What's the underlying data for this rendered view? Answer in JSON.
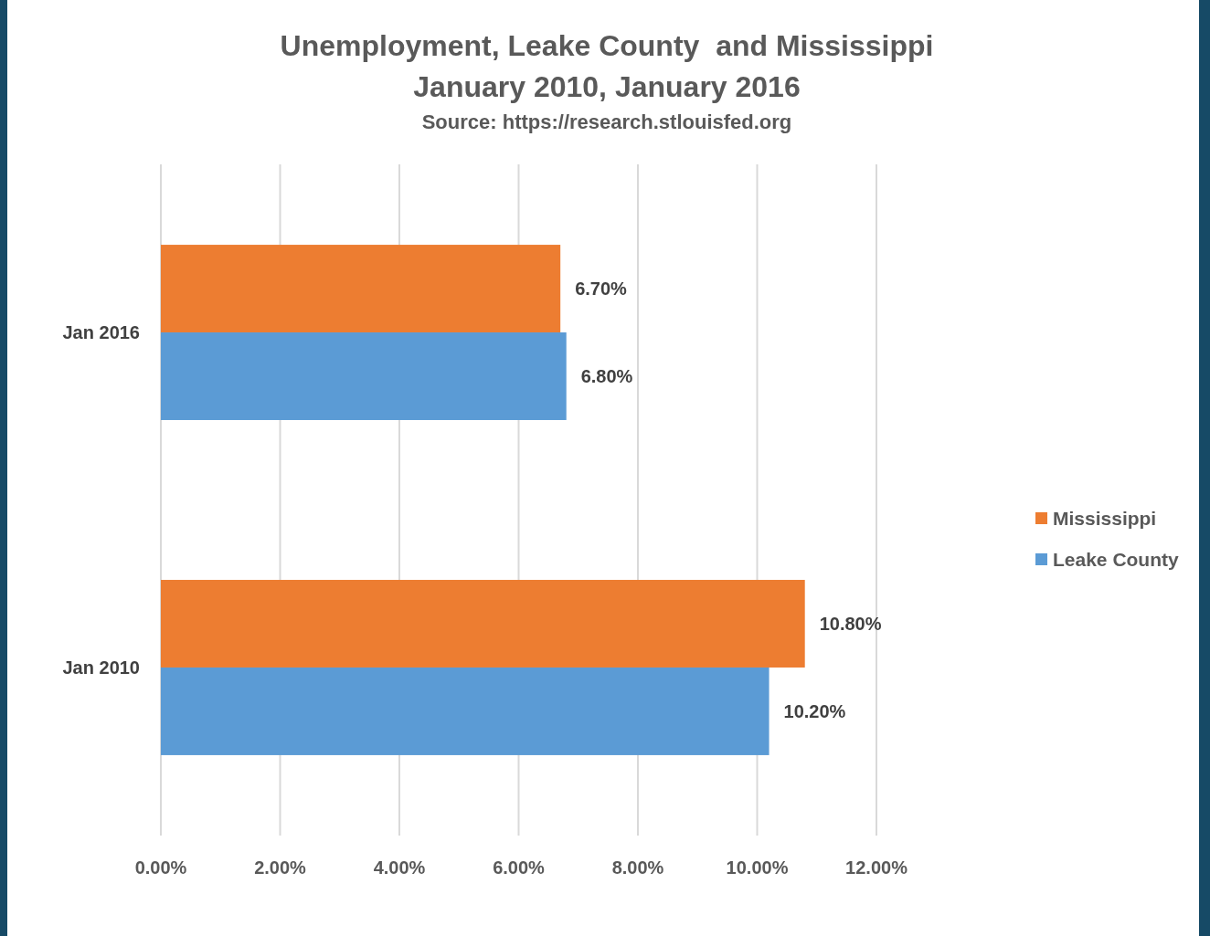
{
  "chart_data": {
    "type": "bar",
    "orientation": "horizontal",
    "title": "Unemployment, Leake County  and Mississippi",
    "subtitle": "January 2010, January 2016",
    "annotations": [
      "Source: https://research.stlouisfed.org"
    ],
    "categories": [
      "Jan 2016",
      "Jan 2010"
    ],
    "series": [
      {
        "name": "Mississippi",
        "color": "#ed7d31",
        "values": [
          6.7,
          10.8
        ],
        "value_labels": [
          "6.70%",
          "10.80%"
        ]
      },
      {
        "name": "Leake County",
        "color": "#5b9bd5",
        "values": [
          6.8,
          10.2
        ],
        "value_labels": [
          "6.80%",
          "10.20%"
        ]
      }
    ],
    "xlim": [
      0,
      12
    ],
    "xticks": [
      {
        "value": 0,
        "label": "0.00%"
      },
      {
        "value": 2,
        "label": "2.00%"
      },
      {
        "value": 4,
        "label": "4.00%"
      },
      {
        "value": 6,
        "label": "6.00%"
      },
      {
        "value": 8,
        "label": "8.00%"
      },
      {
        "value": 10,
        "label": "10.00%"
      },
      {
        "value": 12,
        "label": "12.00%"
      }
    ],
    "grid": "x",
    "legend": "right"
  }
}
